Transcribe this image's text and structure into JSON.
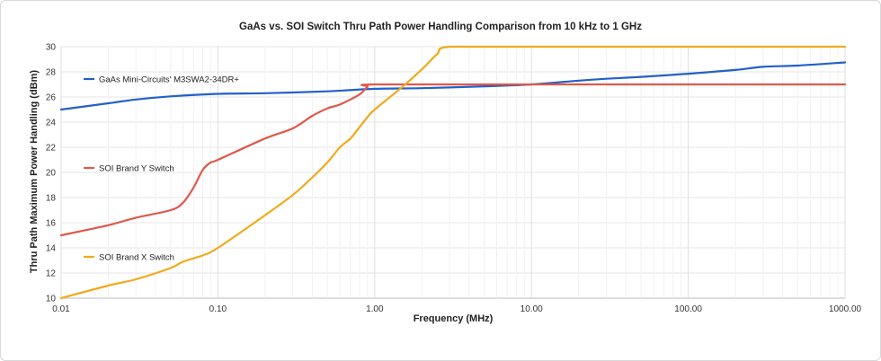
{
  "chart_data": {
    "type": "line",
    "title": "GaAs vs. SOI Switch Thru Path Power Handling Comparison from 10 kHz to 1 GHz",
    "xlabel": "Frequency (MHz)",
    "ylabel": "Thru Path Maximum Power Handling (dBm)",
    "x_scale": "log",
    "xlim": [
      0.01,
      1000
    ],
    "ylim": [
      10,
      30
    ],
    "x_ticks": [
      "0.01",
      "0.10",
      "1.00",
      "10.00",
      "100.00",
      "1000.00"
    ],
    "y_ticks": [
      "10",
      "12",
      "14",
      "16",
      "18",
      "20",
      "22",
      "24",
      "26",
      "28",
      "30"
    ],
    "grid": true,
    "legend_placement": "inline-left",
    "series": [
      {
        "name": "GaAs Mini-Circuits' M3SWA2-34DR+",
        "color": "#2360c9",
        "points": [
          [
            0.01,
            25.0
          ],
          [
            0.02,
            25.5
          ],
          [
            0.03,
            25.8
          ],
          [
            0.05,
            26.05
          ],
          [
            0.1,
            26.25
          ],
          [
            0.2,
            26.3
          ],
          [
            0.5,
            26.45
          ],
          [
            1,
            26.65
          ],
          [
            2,
            26.7
          ],
          [
            5,
            26.85
          ],
          [
            10,
            27.0
          ],
          [
            20,
            27.3
          ],
          [
            30,
            27.45
          ],
          [
            50,
            27.6
          ],
          [
            100,
            27.85
          ],
          [
            200,
            28.15
          ],
          [
            300,
            28.4
          ],
          [
            500,
            28.5
          ],
          [
            1000,
            28.75
          ]
        ]
      },
      {
        "name": "SOI Brand Y Switch",
        "color": "#e0584a",
        "points": [
          [
            0.01,
            15.0
          ],
          [
            0.02,
            15.8
          ],
          [
            0.03,
            16.4
          ],
          [
            0.05,
            17.0
          ],
          [
            0.06,
            17.6
          ],
          [
            0.07,
            18.8
          ],
          [
            0.08,
            20.2
          ],
          [
            0.09,
            20.8
          ],
          [
            0.1,
            21.0
          ],
          [
            0.2,
            22.7
          ],
          [
            0.3,
            23.5
          ],
          [
            0.4,
            24.5
          ],
          [
            0.5,
            25.1
          ],
          [
            0.6,
            25.4
          ],
          [
            0.8,
            26.2
          ],
          [
            0.9,
            26.8
          ],
          [
            1.0,
            27.0
          ],
          [
            10,
            27.0
          ],
          [
            100,
            27.0
          ],
          [
            1000,
            27.0
          ]
        ]
      },
      {
        "name": "SOI Brand X Switch",
        "color": "#f0aa1e",
        "points": [
          [
            0.01,
            10.0
          ],
          [
            0.02,
            11.0
          ],
          [
            0.03,
            11.5
          ],
          [
            0.05,
            12.4
          ],
          [
            0.06,
            12.9
          ],
          [
            0.08,
            13.4
          ],
          [
            0.1,
            14.0
          ],
          [
            0.2,
            16.6
          ],
          [
            0.3,
            18.2
          ],
          [
            0.4,
            19.6
          ],
          [
            0.5,
            20.8
          ],
          [
            0.6,
            22.0
          ],
          [
            0.7,
            22.7
          ],
          [
            0.8,
            23.6
          ],
          [
            0.9,
            24.4
          ],
          [
            1.0,
            25.0
          ],
          [
            1.5,
            26.8
          ],
          [
            2.0,
            28.2
          ],
          [
            2.5,
            29.4
          ],
          [
            3.0,
            30.0
          ],
          [
            10,
            30.0
          ],
          [
            100,
            30.0
          ],
          [
            1000,
            30.0
          ]
        ]
      }
    ]
  }
}
